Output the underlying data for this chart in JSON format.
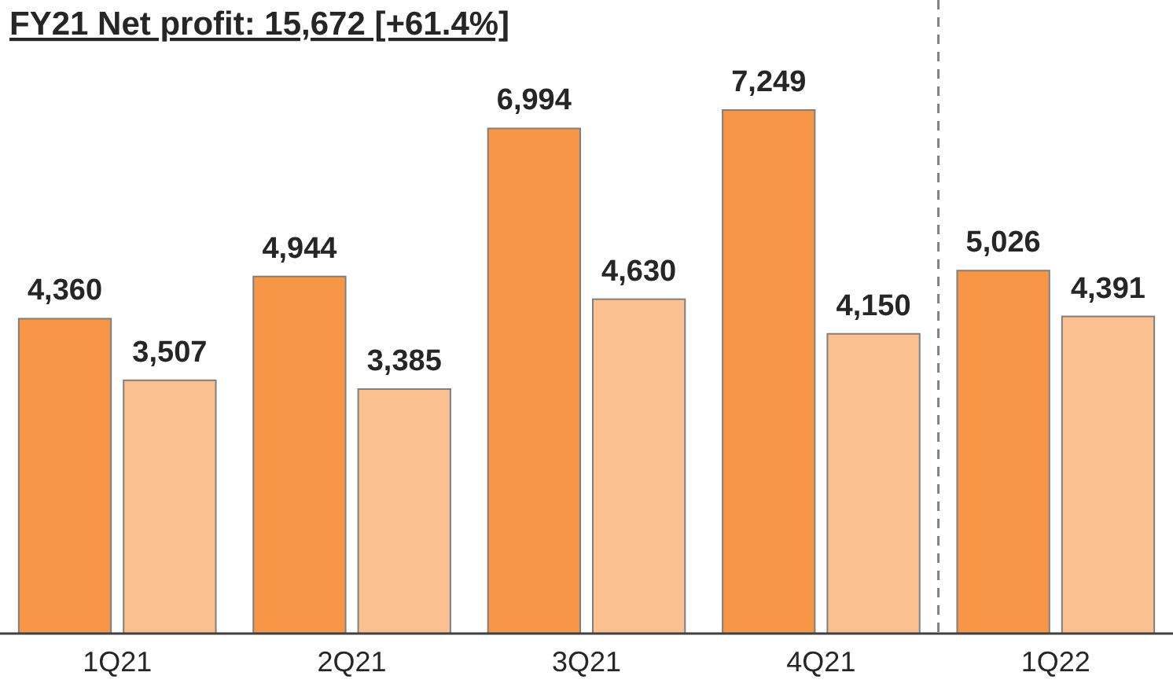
{
  "chart_data": {
    "type": "bar",
    "title": "FY21 Net profit: 15,672 [+61.4%]",
    "categories": [
      "1Q21",
      "2Q21",
      "3Q21",
      "4Q21",
      "1Q22"
    ],
    "series": [
      {
        "color": "#f79646",
        "values": [
          4360,
          4944,
          6994,
          7249,
          5026
        ],
        "value_labels": [
          "4,360",
          "4,944",
          "6,994",
          "7,249",
          "5,026"
        ]
      },
      {
        "color": "#fac090",
        "values": [
          3507,
          3385,
          4630,
          4150,
          4391
        ],
        "value_labels": [
          "3,507",
          "3,385",
          "4,630",
          "4,150",
          "4,391"
        ]
      }
    ]
  }
}
